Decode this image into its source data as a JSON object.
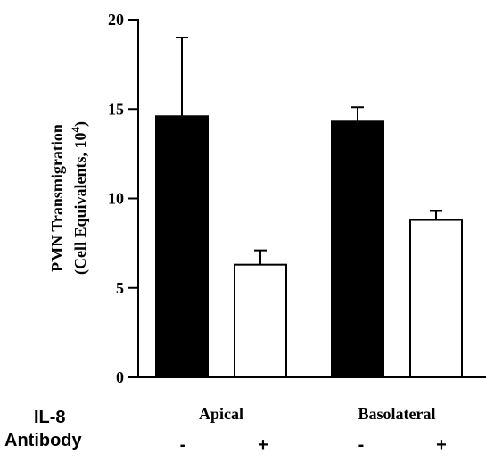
{
  "chart_data": {
    "type": "bar",
    "categories": [
      "Apical",
      "Basolateral"
    ],
    "series": [
      {
        "name": "",
        "color": "#000000",
        "values": [
          14.6,
          14.3
        ],
        "error": [
          4.4,
          0.8
        ]
      },
      {
        "name": "",
        "color": "#ffffff",
        "values": [
          6.3,
          8.8
        ],
        "error": [
          0.8,
          0.5
        ]
      }
    ],
    "ylabel_line1": "PMN Transmigration",
    "ylabel_line2": "(Cell Equivalents, 10",
    "ylabel_exp": "4",
    "ylabel_tail": ")",
    "xlabel": "",
    "title": "",
    "ylim": [
      0,
      20
    ],
    "yticks": [
      0,
      5,
      10,
      15,
      20
    ],
    "grid": false
  },
  "rows": {
    "il8_label": "IL-8",
    "antibody_label": "Antibody",
    "antibody_signs": [
      "-",
      "+",
      "-",
      "+"
    ]
  }
}
